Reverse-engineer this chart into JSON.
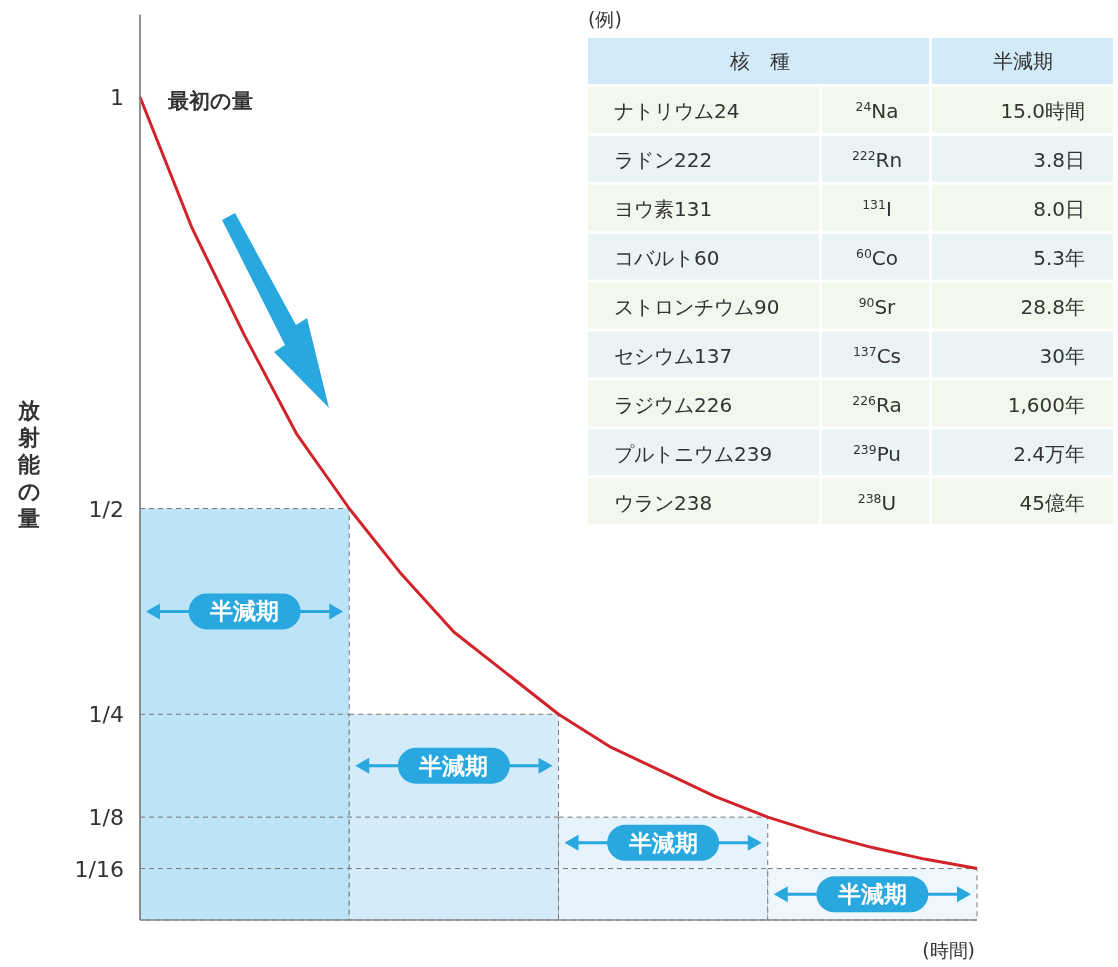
{
  "chart_data": [
    {
      "type": "bar",
      "xlabel": "(時間)",
      "ylabel": "放射能の量",
      "ylim": [
        0,
        1.1
      ],
      "tick_labels": "y",
      "yticks": [
        1,
        {
          "value": 0.5,
          "label": "1/2"
        },
        {
          "value": 0.25,
          "label": "1/4"
        },
        {
          "value": 0.125,
          "label": "1/8"
        },
        {
          "value": 0.0625,
          "label": "1/16"
        }
      ],
      "categories": [
        null,
        null,
        null,
        null
      ],
      "values": [
        0.5,
        0.25,
        0.125,
        0.0625
      ],
      "colors": [
        "#bde3f7",
        "#d5ebf9",
        "#e6f3fc",
        "#eef7fd"
      ],
      "value_labels": [
        "半減期",
        "半減期",
        "半減期",
        "半減期"
      ],
      "ref_lines": [
        {
          "axis": "y",
          "value": 0.25,
          "line_style": "dashed"
        },
        {
          "axis": "y",
          "value": 0.125,
          "line_style": "dashed"
        },
        {
          "axis": "y",
          "value": 0.0625,
          "line_style": "dashed"
        }
      ],
      "annotations": [
        "最初の量"
      ]
    },
    {
      "type": "line",
      "ylim": [
        0,
        1.1
      ],
      "tick_labels": false,
      "categories": [
        null,
        null,
        null,
        null,
        null,
        null,
        null,
        null,
        null,
        null,
        null,
        null,
        null,
        null,
        null,
        null,
        null
      ],
      "series": [
        {
          "color": "#d2232a",
          "values": [
            1,
            0.84,
            0.71,
            0.59,
            0.5,
            0.42,
            0.35,
            0.3,
            0.25,
            0.21,
            0.18,
            0.15,
            0.125,
            0.105,
            0.088,
            0.074,
            0.0625
          ]
        }
      ]
    },
    {
      "type": "other",
      "title": "(例)",
      "categories": [
        "核　種",
        "半減期"
      ],
      "annotations": [
        "ナトリウム24",
        "$^{24}$Na",
        "15.0時間",
        "ラドン222",
        "$^{222}$Rn",
        "3.8日",
        "ヨウ素131",
        "$^{131}$I",
        "8.0日",
        "コバルト60",
        "$^{60}$Co",
        "5.3年",
        "ストロンチウム90",
        "$^{90}$Sr",
        "28.8年",
        "セシウム137",
        "$^{137}$Cs",
        "30年",
        "ラジウム226",
        "$^{226}$Ra",
        "1,600年",
        "プルトニウム239",
        "$^{239}$Pu",
        "2.4万年",
        "ウラン238",
        "$^{238}$U",
        "45億年"
      ]
    }
  ]
}
